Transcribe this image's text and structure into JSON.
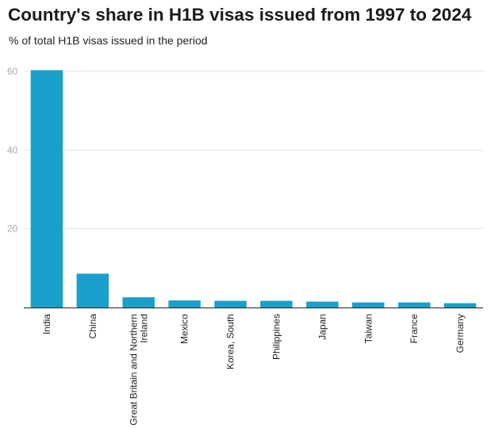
{
  "chart_data": {
    "type": "bar",
    "title": "Country's share in H1B visas issued from 1997 to 2024",
    "subtitle": "% of total H1B visas issued in the period",
    "xlabel": "",
    "ylabel": "",
    "ylim": [
      0,
      60
    ],
    "yticks": [
      "20",
      "40",
      "60"
    ],
    "grid": true,
    "categories": [
      [
        "India"
      ],
      [
        "China"
      ],
      [
        "Great Britain and Northern",
        "Ireland"
      ],
      [
        "Mexico"
      ],
      [
        "Korea, South"
      ],
      [
        "Philippines"
      ],
      [
        "Japan"
      ],
      [
        "Taiwan"
      ],
      [
        "France"
      ],
      [
        "Germany"
      ]
    ],
    "values": [
      60.3,
      8.6,
      2.6,
      1.8,
      1.7,
      1.7,
      1.5,
      1.3,
      1.3,
      1.1
    ],
    "bar_color": "#1a9fcb"
  }
}
